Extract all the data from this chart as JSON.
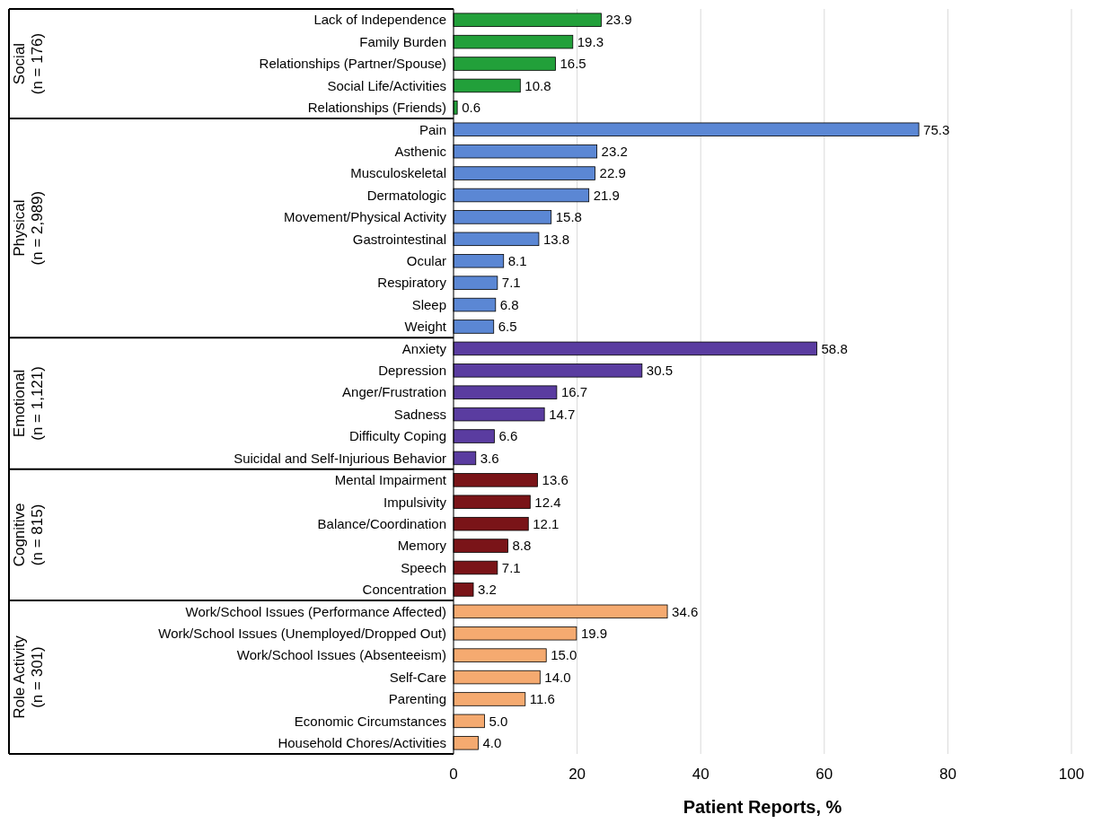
{
  "chart_data": {
    "type": "bar",
    "orientation": "horizontal",
    "xlabel": "Patient Reports, %",
    "categories": [
      "Lack of Independence",
      "Family Burden",
      "Relationships (Partner/Spouse)",
      "Social Life/Activities",
      "Relationships (Friends)",
      "Pain",
      "Asthenic",
      "Musculoskeletal",
      "Dermatologic",
      "Movement/Physical Activity",
      "Gastrointestinal",
      "Ocular",
      "Respiratory",
      "Sleep",
      "Weight",
      "Anxiety",
      "Depression",
      "Anger/Frustration",
      "Sadness",
      "Difficulty Coping",
      "Suicidal and Self-Injurious Behavior",
      "Mental Impairment",
      "Impulsivity",
      "Balance/Coordination",
      "Memory",
      "Speech",
      "Concentration",
      "Work/School Issues (Performance Affected)",
      "Work/School Issues (Unemployed/Dropped Out)",
      "Work/School Issues (Absenteeism)",
      "Self-Care",
      "Parenting",
      "Economic Circumstances",
      "Household Chores/Activities"
    ],
    "annotations": [
      "Social\n(n = 176)",
      "Physical\n(n = 2,989)",
      "Emotional\n(n = 1,121)",
      "Cognitive\n(n = 815)",
      "Role Activity\n(n = 301)"
    ],
    "series": [
      {
        "color": "#22a03a",
        "values": [
          23.9,
          19.3,
          16.5,
          10.8,
          0.6,
          null,
          null,
          null,
          null,
          null,
          null,
          null,
          null,
          null,
          null,
          null,
          null,
          null,
          null,
          null,
          null,
          null,
          null,
          null,
          null,
          null,
          null,
          null,
          null,
          null,
          null,
          null,
          null,
          null
        ],
        "value_labels": [
          "23.9",
          "19.3",
          "16.5",
          "10.8",
          "0.6",
          null,
          null,
          null,
          null,
          null,
          null,
          null,
          null,
          null,
          null,
          null,
          null,
          null,
          null,
          null,
          null,
          null,
          null,
          null,
          null,
          null,
          null,
          null,
          null,
          null,
          null,
          null,
          null,
          null
        ]
      },
      {
        "color": "#5b87d4",
        "values": [
          null,
          null,
          null,
          null,
          null,
          75.3,
          23.2,
          22.9,
          21.9,
          15.8,
          13.8,
          8.1,
          7.1,
          6.8,
          6.5,
          null,
          null,
          null,
          null,
          null,
          null,
          null,
          null,
          null,
          null,
          null,
          null,
          null,
          null,
          null,
          null,
          null,
          null,
          null
        ],
        "value_labels": [
          null,
          null,
          null,
          null,
          null,
          "75.3",
          "23.2",
          "22.9",
          "21.9",
          "15.8",
          "13.8",
          "8.1",
          "7.1",
          "6.8",
          "6.5",
          null,
          null,
          null,
          null,
          null,
          null,
          null,
          null,
          null,
          null,
          null,
          null,
          null,
          null,
          null,
          null,
          null,
          null,
          null
        ]
      },
      {
        "color": "#5a3ca0",
        "values": [
          null,
          null,
          null,
          null,
          null,
          null,
          null,
          null,
          null,
          null,
          null,
          null,
          null,
          null,
          null,
          58.8,
          30.5,
          16.7,
          14.7,
          6.6,
          3.6,
          null,
          null,
          null,
          null,
          null,
          null,
          null,
          null,
          null,
          null,
          null,
          null,
          null
        ],
        "value_labels": [
          null,
          null,
          null,
          null,
          null,
          null,
          null,
          null,
          null,
          null,
          null,
          null,
          null,
          null,
          null,
          "58.8",
          "30.5",
          "16.7",
          "14.7",
          "6.6",
          "3.6",
          null,
          null,
          null,
          null,
          null,
          null,
          null,
          null,
          null,
          null,
          null,
          null,
          null
        ]
      },
      {
        "color": "#7a1418",
        "values": [
          null,
          null,
          null,
          null,
          null,
          null,
          null,
          null,
          null,
          null,
          null,
          null,
          null,
          null,
          null,
          null,
          null,
          null,
          null,
          null,
          null,
          13.6,
          12.4,
          12.1,
          8.8,
          7.1,
          3.2,
          null,
          null,
          null,
          null,
          null,
          null,
          null
        ],
        "value_labels": [
          null,
          null,
          null,
          null,
          null,
          null,
          null,
          null,
          null,
          null,
          null,
          null,
          null,
          null,
          null,
          null,
          null,
          null,
          null,
          null,
          null,
          "13.6",
          "12.4",
          "12.1",
          "8.8",
          "7.1",
          "3.2",
          null,
          null,
          null,
          null,
          null,
          null,
          null
        ]
      },
      {
        "color": "#f5aa70",
        "values": [
          null,
          null,
          null,
          null,
          null,
          null,
          null,
          null,
          null,
          null,
          null,
          null,
          null,
          null,
          null,
          null,
          null,
          null,
          null,
          null,
          null,
          null,
          null,
          null,
          null,
          null,
          null,
          34.6,
          19.9,
          15.0,
          14.0,
          11.6,
          5.0,
          4.0
        ],
        "value_labels": [
          null,
          null,
          null,
          null,
          null,
          null,
          null,
          null,
          null,
          null,
          null,
          null,
          null,
          null,
          null,
          null,
          null,
          null,
          null,
          null,
          null,
          null,
          null,
          null,
          null,
          null,
          null,
          "34.6",
          "19.9",
          "15.0",
          "14.0",
          "11.6",
          "5.0",
          "4.0"
        ]
      }
    ],
    "xlim": [
      0,
      100
    ],
    "xticks": [
      0,
      20,
      40,
      60,
      80,
      100
    ],
    "grid": "x"
  }
}
